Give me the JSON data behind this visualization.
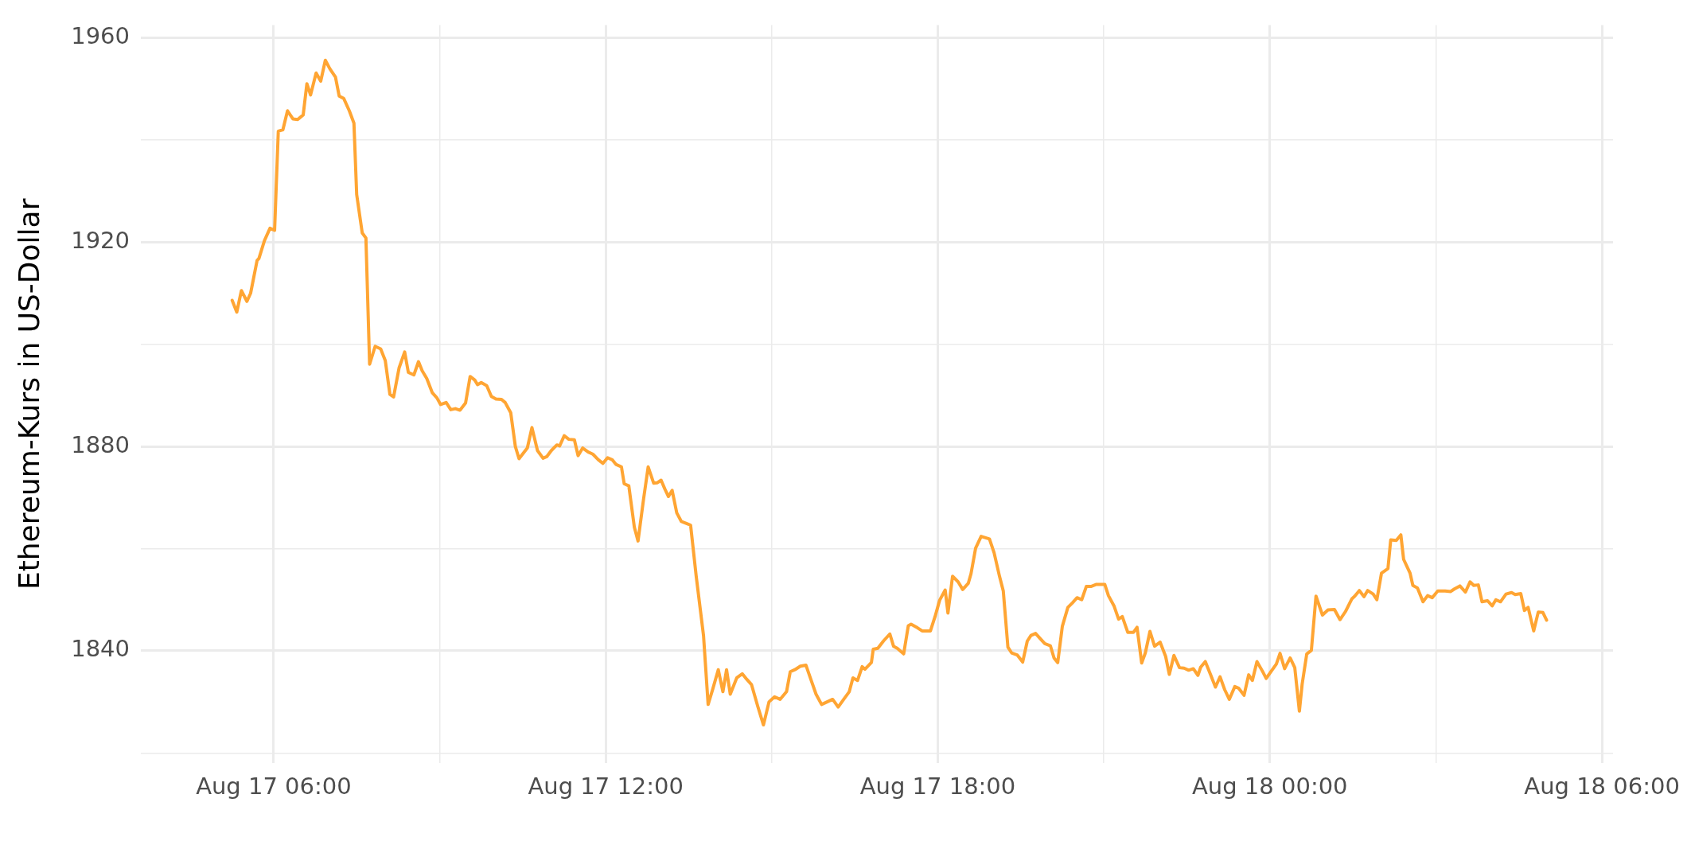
{
  "chart_data": {
    "type": "line",
    "ylabel": "Ethereum-Kurs in US-Dollar",
    "color": "#ffa533",
    "x": [
      "--08-17T05:15",
      "--08-17T05:20",
      "--08-17T05:25",
      "--08-17T05:31",
      "--08-17T05:35",
      "--08-17T05:42",
      "--08-17T05:44",
      "--08-17T05:50",
      "--08-17T05:56",
      "--08-17T06:01",
      "--08-17T06:05",
      "--08-17T06:10",
      "--08-17T06:15",
      "--08-17T06:21",
      "--08-17T06:26",
      "--08-17T06:32",
      "--08-17T06:36",
      "--08-17T06:40",
      "--08-17T06:46",
      "--08-17T06:51",
      "--08-17T06:56",
      "--08-17T07:01",
      "--08-17T07:07",
      "--08-17T07:11",
      "--08-17T07:16",
      "--08-17T07:22",
      "--08-17T07:27",
      "--08-17T07:30",
      "--08-17T07:36",
      "--08-17T07:40",
      "--08-17T07:44",
      "--08-17T07:50",
      "--08-17T07:56",
      "--08-17T08:01",
      "--08-17T08:06",
      "--08-17T08:10",
      "--08-17T08:16",
      "--08-17T08:22",
      "--08-17T08:26",
      "--08-17T08:32",
      "--08-17T08:37",
      "--08-17T08:41",
      "--08-17T08:46",
      "--08-17T08:52",
      "--08-17T08:57",
      "--08-17T09:01",
      "--08-17T09:07",
      "--08-17T09:12",
      "--08-17T09:17",
      "--08-17T09:22",
      "--08-17T09:28",
      "--08-17T09:33",
      "--08-17T09:38",
      "--08-17T09:41",
      "--08-17T09:45",
      "--08-17T09:51",
      "--08-17T09:56",
      "--08-17T10:01",
      "--08-17T10:07",
      "--08-17T10:11",
      "--08-17T10:17",
      "--08-17T10:22",
      "--08-17T10:26",
      "--08-17T10:35",
      "--08-17T10:40",
      "--08-17T10:46",
      "--08-17T10:52",
      "--08-17T10:56",
      "--08-17T11:01",
      "--08-17T11:07",
      "--08-17T11:10",
      "--08-17T11:15",
      "--08-17T11:20",
      "--08-17T11:26",
      "--08-17T11:30",
      "--08-17T11:35",
      "--08-17T11:41",
      "--08-17T11:46",
      "--08-17T11:52",
      "--08-17T11:57",
      "--08-17T12:02",
      "--08-17T12:07",
      "--08-17T12:11",
      "--08-17T12:17",
      "--08-17T12:20",
      "--08-17T12:25",
      "--08-17T12:31",
      "--08-17T12:35",
      "--08-17T12:41",
      "--08-17T12:46",
      "--08-17T12:52",
      "--08-17T12:56",
      "--08-17T13:00",
      "--08-17T13:04",
      "--08-17T13:08",
      "--08-17T13:12",
      "--08-17T13:17",
      "--08-17T13:22",
      "--08-17T13:28",
      "--08-17T13:32",
      "--08-17T13:38",
      "--08-17T13:46",
      "--08-17T13:51",
      "--08-17T13:56",
      "--08-17T14:02",
      "--08-17T14:07",
      "--08-17T14:11",
      "--08-17T14:15",
      "--08-17T14:22",
      "--08-17T14:28",
      "--08-17T14:33",
      "--08-17T14:38",
      "--08-17T14:45",
      "--08-17T14:51",
      "--08-17T14:57",
      "--08-17T15:03",
      "--08-17T15:09",
      "--08-17T15:16",
      "--08-17T15:20",
      "--08-17T15:25",
      "--08-17T15:31",
      "--08-17T15:37",
      "--08-17T15:42",
      "--08-17T15:48",
      "--08-17T15:54",
      "--08-17T16:00",
      "--08-17T16:06",
      "--08-17T16:12",
      "--08-17T16:18",
      "--08-17T16:24",
      "--08-17T16:28",
      "--08-17T16:33",
      "--08-17T16:38",
      "--08-17T16:41",
      "--08-17T16:48",
      "--08-17T16:50",
      "--08-17T16:55",
      "--08-17T17:01",
      "--08-17T17:08",
      "--08-17T17:12",
      "--08-17T17:16",
      "--08-17T17:23",
      "--08-17T17:28",
      "--08-17T17:31",
      "--08-17T17:38",
      "--08-17T17:43",
      "--08-17T17:52",
      "--08-17T17:57",
      "--08-17T18:02",
      "--08-17T18:08",
      "--08-17T18:11",
      "--08-17T18:16",
      "--08-17T18:22",
      "--08-17T18:27",
      "--08-17T18:33",
      "--08-17T18:36",
      "--08-17T18:41",
      "--08-17T18:47",
      "--08-17T18:56",
      "--08-17T19:01",
      "--08-17T19:07",
      "--08-17T19:11",
      "--08-17T19:16",
      "--08-17T19:20",
      "--08-17T19:26",
      "--08-17T19:32",
      "--08-17T19:37",
      "--08-17T19:41",
      "--08-17T19:46",
      "--08-17T19:52",
      "--08-17T19:56",
      "--08-17T20:02",
      "--08-17T20:06",
      "--08-17T20:10",
      "--08-17T20:15",
      "--08-17T20:21",
      "--08-17T20:26",
      "--08-17T20:31",
      "--08-17T20:36",
      "--08-17T20:41",
      "--08-17T20:46",
      "--08-17T20:52",
      "--08-17T21:01",
      "--08-17T21:05",
      "--08-17T21:11",
      "--08-17T21:16",
      "--08-17T21:20",
      "--08-17T21:26",
      "--08-17T21:32",
      "--08-17T21:36",
      "--08-17T21:41",
      "--08-17T21:45",
      "--08-17T21:50",
      "--08-17T21:55",
      "--08-17T22:01",
      "--08-17T22:07",
      "--08-17T22:11",
      "--08-17T22:16",
      "--08-17T22:22",
      "--08-17T22:27",
      "--08-17T22:32",
      "--08-17T22:37",
      "--08-17T22:42",
      "--08-17T22:45",
      "--08-17T22:50",
      "--08-17T22:56",
      "--08-17T23:01",
      "--08-17T23:06",
      "--08-17T23:11",
      "--08-17T23:16",
      "--08-17T23:22",
      "--08-17T23:26",
      "--08-17T23:32",
      "--08-17T23:37",
      "--08-17T23:41",
      "--08-17T23:46",
      "--08-17T23:52",
      "--08-17T23:56",
      "--08-18T00:01",
      "--08-18T00:07",
      "--08-18T00:11",
      "--08-18T00:16",
      "--08-18T00:22",
      "--08-18T00:27",
      "--08-18T00:32",
      "--08-18T00:35",
      "--08-18T00:40",
      "--08-18T00:45",
      "--08-18T00:50",
      "--08-18T00:57",
      "--08-18T01:03",
      "--08-18T01:10",
      "--08-18T01:16",
      "--08-18T01:22",
      "--08-18T01:29",
      "--08-18T01:32",
      "--08-18T01:37",
      "--08-18T01:42",
      "--08-18T01:46",
      "--08-18T01:52",
      "--08-18T01:56",
      "--08-18T02:01",
      "--08-18T02:08",
      "--08-18T02:11",
      "--08-18T02:17",
      "--08-18T02:22",
      "--08-18T02:25",
      "--08-18T02:32",
      "--08-18T02:35",
      "--08-18T02:40",
      "--08-18T02:46",
      "--08-18T02:51",
      "--08-18T02:56",
      "--08-18T03:02",
      "--08-18T03:10",
      "--08-18T03:16",
      "--08-18T03:20",
      "--08-18T03:26",
      "--08-18T03:32",
      "--08-18T03:37",
      "--08-18T03:41",
      "--08-18T03:46",
      "--08-18T03:50",
      "--08-18T03:56",
      "--08-18T04:01",
      "--08-18T04:05",
      "--08-18T04:10",
      "--08-18T04:16",
      "--08-18T04:22",
      "--08-18T04:26",
      "--08-18T04:32",
      "--08-18T04:36",
      "--08-18T04:40",
      "--08-18T04:46",
      "--08-18T04:51",
      "--08-18T04:56",
      "--08-18T05:00"
    ],
    "values": [
      1908.6,
      1906.3,
      1910.5,
      1908.4,
      1910.0,
      1916.4,
      1916.8,
      1920.3,
      1922.7,
      1922.3,
      1941.7,
      1942.0,
      1945.7,
      1944.1,
      1944.0,
      1944.9,
      1951.0,
      1948.8,
      1953.1,
      1951.5,
      1955.6,
      1953.9,
      1952.3,
      1948.6,
      1948.1,
      1945.7,
      1943.3,
      1929.3,
      1921.8,
      1920.8,
      1896.1,
      1899.6,
      1899.1,
      1896.8,
      1890.2,
      1889.7,
      1895.4,
      1898.5,
      1894.5,
      1894.0,
      1896.6,
      1894.8,
      1893.3,
      1890.5,
      1889.5,
      1888.2,
      1888.6,
      1887.2,
      1887.4,
      1887.1,
      1888.5,
      1893.7,
      1893.0,
      1892.1,
      1892.5,
      1891.9,
      1889.8,
      1889.3,
      1889.2,
      1888.6,
      1886.6,
      1880.0,
      1877.6,
      1879.7,
      1883.7,
      1879.2,
      1877.7,
      1878.0,
      1879.2,
      1880.3,
      1880.1,
      1882.1,
      1881.4,
      1881.3,
      1878.2,
      1879.7,
      1878.9,
      1878.5,
      1877.4,
      1876.7,
      1877.8,
      1877.4,
      1876.5,
      1876.0,
      1872.7,
      1872.3,
      1864.2,
      1861.5,
      1869.7,
      1876.0,
      1872.8,
      1872.9,
      1873.4,
      1871.7,
      1870.2,
      1871.4,
      1867.0,
      1865.3,
      1864.9,
      1864.6,
      1854.7,
      1843.0,
      1829.5,
      1832.5,
      1836.3,
      1832.0,
      1836.3,
      1831.5,
      1834.7,
      1835.5,
      1834.4,
      1833.4,
      1829.0,
      1825.5,
      1830.0,
      1831.0,
      1830.5,
      1832.0,
      1835.9,
      1836.3,
      1837.0,
      1837.2,
      1834.6,
      1831.5,
      1829.5,
      1830.0,
      1830.5,
      1829.0,
      1830.5,
      1832.0,
      1834.7,
      1834.2,
      1836.9,
      1836.4,
      1837.7,
      1840.3,
      1840.5,
      1841.9,
      1843.3,
      1840.9,
      1840.5,
      1839.4,
      1844.9,
      1845.2,
      1844.5,
      1843.9,
      1843.9,
      1846.7,
      1849.9,
      1851.9,
      1847.4,
      1854.6,
      1853.5,
      1852.0,
      1853.2,
      1855.1,
      1860.1,
      1862.4,
      1861.9,
      1859.2,
      1854.5,
      1851.7,
      1840.7,
      1839.6,
      1839.2,
      1837.8,
      1841.9,
      1843.0,
      1843.4,
      1842.2,
      1841.4,
      1841.0,
      1838.6,
      1837.7,
      1844.8,
      1848.5,
      1849.4,
      1850.4,
      1850.0,
      1852.6,
      1852.6,
      1853.0,
      1853.0,
      1850.8,
      1848.8,
      1846.2,
      1846.7,
      1843.6,
      1843.6,
      1844.6,
      1837.6,
      1839.6,
      1843.8,
      1840.9,
      1841.7,
      1838.9,
      1835.4,
      1839.1,
      1836.7,
      1836.6,
      1836.2,
      1836.5,
      1835.2,
      1836.8,
      1837.9,
      1835.2,
      1832.9,
      1834.9,
      1832.4,
      1830.5,
      1833.0,
      1832.7,
      1831.3,
      1835.3,
      1834.2,
      1837.9,
      1836.0,
      1834.6,
      1835.9,
      1837.4,
      1839.5,
      1836.5,
      1838.6,
      1836.7,
      1828.2,
      1833.5,
      1839.4,
      1840.1,
      1850.7,
      1847.0,
      1848.0,
      1848.1,
      1846.1,
      1847.7,
      1850.2,
      1850.7,
      1851.8,
      1850.6,
      1851.8,
      1851.1,
      1850.0,
      1855.2,
      1856.1,
      1861.7,
      1861.6,
      1862.7,
      1857.9,
      1855.2,
      1852.8,
      1852.3,
      1849.6,
      1850.8,
      1850.4,
      1851.7,
      1851.7,
      1851.6,
      1852.1,
      1852.7,
      1851.5,
      1853.5,
      1852.8,
      1852.9,
      1849.6,
      1849.8,
      1848.8,
      1850.0,
      1849.6,
      1851.1,
      1851.4,
      1851.0,
      1851.2,
      1847.9,
      1848.5,
      1843.9,
      1847.6,
      1847.5,
      1846.0
    ],
    "xlim": [
      "--08-17T03:36",
      "--08-18T06:12"
    ],
    "xticks": [
      {
        "value": "--08-17T06:00",
        "label": "Aug 17 06:00"
      },
      {
        "value": "--08-17T09:00",
        "label": null
      },
      {
        "value": "--08-17T12:00",
        "label": "Aug 17 12:00"
      },
      {
        "value": "--08-17T15:00",
        "label": null
      },
      {
        "value": "--08-17T18:00",
        "label": "Aug 17 18:00"
      },
      {
        "value": "--08-17T21:00",
        "label": null
      },
      {
        "value": "--08-18T00:00",
        "label": "Aug 18 00:00"
      },
      {
        "value": "--08-18T03:00",
        "label": null
      },
      {
        "value": "--08-18T06:00",
        "label": "Aug 18 06:00"
      }
    ],
    "ylim": [
      1818,
      1962.5
    ],
    "yticks": [
      {
        "value": 1820,
        "label": null
      },
      1840,
      {
        "value": 1860,
        "label": null
      },
      1880,
      {
        "value": 1900,
        "label": null
      },
      1920,
      {
        "value": 1940,
        "label": null
      },
      1960
    ],
    "grid": true
  }
}
